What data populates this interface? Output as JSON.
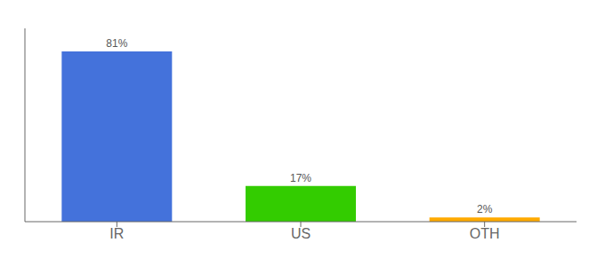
{
  "chart_data": {
    "type": "bar",
    "categories": [
      "IR",
      "US",
      "OTH"
    ],
    "values": [
      81,
      17,
      2
    ],
    "value_labels": [
      "81%",
      "17%",
      "2%"
    ],
    "colors": [
      "#4472db",
      "#33cc00",
      "#ffaa00"
    ],
    "ylim": [
      0,
      92
    ],
    "data_labels": true,
    "tick_labels": "x",
    "grid": false
  }
}
